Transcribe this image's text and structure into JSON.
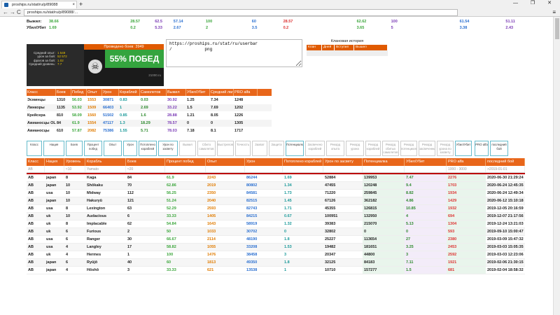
{
  "browser": {
    "tab_title": "proships.ru/stat/ru/p/89088",
    "url": "proships.ru/stat/ru/p/89088/…",
    "close": "×",
    "new_tab": "+",
    "window_controls": "— ❐ ✕",
    "back": "←",
    "forward": "→",
    "reload": "C",
    "menu": "≡"
  },
  "top_stats": {
    "row1_label": "Выжил:",
    "row1": [
      "38.66",
      "28.57",
      "62.5",
      "57.14",
      "100",
      "60",
      "28.57",
      "62.62",
      "100",
      "61.54",
      "51.11"
    ],
    "row2_label": "Убил/Убит",
    "row2": [
      "1.69",
      "0.2",
      "5.33",
      "2.67",
      "2",
      "3.5",
      "0.2",
      "3.65",
      "5",
      "3.38",
      "2.43"
    ]
  },
  "badge": {
    "battles_header": "Проведено боев: 3949",
    "stats": [
      {
        "k": "Средний опыт:",
        "v": "1 549"
      },
      {
        "k": "урон за бой:",
        "v": "52 572"
      },
      {
        "k": "фрагов за бой:",
        "v": "1.02"
      },
      {
        "k": "Средний уровень:",
        "v": "7.7"
      }
    ],
    "win_rate": "55% ПОБЕД",
    "footer": "21000.ru"
  },
  "userbar": {
    "text": "https://proships.ru/stat/ru/userbar\n/             png"
  },
  "clan_history": {
    "title": "Клановая история",
    "columns": [
      "Клан",
      "Дней",
      "Вступил",
      "Вышел"
    ]
  },
  "class_table": {
    "columns": [
      "Класс",
      "Боев",
      "Побед",
      "Опыт",
      "Урон",
      "Кораблей",
      "Самолетов",
      "Выжил",
      "Убил/Убит",
      "Средний лвл",
      "PRO alfa"
    ],
    "rows": [
      [
        "Эсминцы",
        "1310",
        "56.03",
        "1553",
        "30871",
        "0.83",
        "0.03",
        "30.92",
        "1.25",
        "7.34",
        "1248"
      ],
      [
        "Линкоры",
        "1135",
        "53.92",
        "1509",
        "66403",
        "1",
        "2.69",
        "33.22",
        "1.5",
        "7.69",
        "1202"
      ],
      [
        "Крейсера",
        "810",
        "58.09",
        "1560",
        "51502",
        "0.85",
        "1.6",
        "28.88",
        "1.21",
        "8.05",
        "1226"
      ],
      [
        "Авианосцы OLD",
        "84",
        "61.9",
        "1554",
        "47117",
        "1.3",
        "18.29",
        "78.57",
        "0",
        "0",
        "1305"
      ],
      [
        "Авианосцы",
        "610",
        "57.87",
        "2082",
        "75386",
        "1.55",
        "5.71",
        "78.03",
        "7.18",
        "8.1",
        "1717"
      ]
    ]
  },
  "filters": [
    "Класс",
    "Нация",
    "Боев",
    "Процент побед",
    "Опыт",
    "Урон",
    "Потоплено кораблей",
    "Урон по засвету",
    "Выжил",
    "Сбито самолетов",
    "Выстрелов",
    "Точность",
    "Захват",
    "Защита",
    "Потенциалка",
    "Засвечено кораблей",
    "Рекорд опыта",
    "Рекорд урона",
    "Рекорд кораблей",
    "Рекорд сбитых самолетов",
    "Рекорд потенциалки",
    "Рекорд засвеченных",
    "Рекорд урона по засвету",
    "Убил/Убит",
    "PRO alfa",
    "последний бой"
  ],
  "main_table": {
    "columns": [
      "Класс",
      "Нация",
      "Уровень",
      "Корабль",
      "Боев",
      "Процент побед",
      "Опыт",
      "Урон",
      "Потоплено кораблей",
      "Урон по засвету",
      "Потенциалка",
      "Убил/Убит",
      "PRO alfa",
      "последний бой"
    ],
    "filter_row": [
      "AB",
      "",
      "≈10",
      "Yamato",
      "≈20",
      "",
      "",
      "",
      "",
      "",
      "",
      "",
      "1000 - 3000",
      ">2019-01-01"
    ],
    "rows": [
      [
        "AB",
        "japan",
        "8",
        "Kaga",
        "84",
        "61.9",
        "2243",
        "86244",
        "1.69",
        "52884",
        "139953",
        "7.47",
        "2276",
        "2020-06-30 21:29:24"
      ],
      [
        "AB",
        "japan",
        "10",
        "Shōkaku",
        "70",
        "62.86",
        "2019",
        "80802",
        "1.34",
        "47455",
        "120248",
        "9.4",
        "1703",
        "2020-06-24 12:45:35"
      ],
      [
        "AB",
        "usa",
        "10",
        "Midway",
        "112",
        "56.25",
        "2350",
        "84581",
        "1.73",
        "71220",
        "259845",
        "8.82",
        "1934",
        "2020-06-24 12:49:34"
      ],
      [
        "AB",
        "japan",
        "10",
        "Hakuryū",
        "121",
        "51.24",
        "2040",
        "82515",
        "1.45",
        "67126",
        "362182",
        "4.86",
        "1429",
        "2020-06-12 15:10:18"
      ],
      [
        "AB",
        "usa",
        "8",
        "Lexington",
        "63",
        "52.29",
        "2593",
        "82743",
        "1.71",
        "45355",
        "126815",
        "10.85",
        "1932",
        "2019-12-05 20:16:59"
      ],
      [
        "AB",
        "uk",
        "10",
        "Audacious",
        "6",
        "33.33",
        "1405",
        "84215",
        "0.67",
        "100951",
        "132950",
        "4",
        "694",
        "2019-12-07 21:17:56"
      ],
      [
        "AB",
        "uk",
        "8",
        "Implacable",
        "62",
        "54.84",
        "1643",
        "58919",
        "1.32",
        "39383",
        "215070",
        "5.13",
        "1304",
        "2019-12-24 13:21:03"
      ],
      [
        "AB",
        "uk",
        "6",
        "Furious",
        "2",
        "50",
        "1033",
        "30702",
        "0",
        "32802",
        "0",
        "0",
        "593",
        "2019-09-10 15:00:47"
      ],
      [
        "AB",
        "usa",
        "6",
        "Ranger",
        "30",
        "66.67",
        "2114",
        "48190",
        "1.8",
        "25227",
        "113654",
        "27",
        "2380",
        "2019-03-09 15:47:32"
      ],
      [
        "AB",
        "usa",
        "4",
        "Langley",
        "17",
        "58.82",
        "1055",
        "33208",
        "1.53",
        "19482",
        "181651",
        "3.25",
        "2453",
        "2019-03-03 15:05:35"
      ],
      [
        "AB",
        "uk",
        "4",
        "Hermes",
        "1",
        "100",
        "1476",
        "38458",
        "3",
        "20347",
        "44800",
        "3",
        "2592",
        "2019-03-03 12:23:06"
      ],
      [
        "AB",
        "japan",
        "6",
        "Ryūjō",
        "40",
        "60",
        "1813",
        "49350",
        "1.8",
        "32125",
        "84183",
        "7.11",
        "1921",
        "2019-02-06 21:30:15"
      ],
      [
        "AB",
        "japan",
        "4",
        "Hōshō",
        "3",
        "33.33",
        "621",
        "13538",
        "1",
        "10710",
        "157277",
        "1.5",
        "681",
        "2019-02-04 18:58:32"
      ]
    ]
  }
}
